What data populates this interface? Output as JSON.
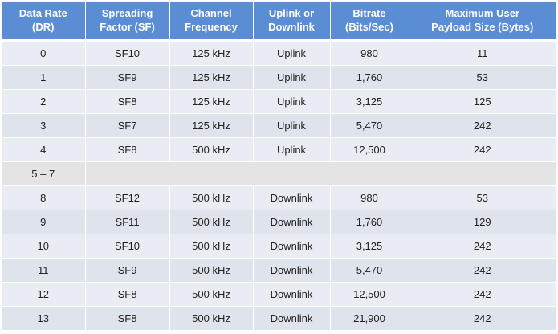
{
  "table": {
    "headers": [
      "Data Rate\n(DR)",
      "Spreading\nFactor (SF)",
      "Channel\nFrequency",
      "Uplink or\nDownlink",
      "Bitrate\n(Bits/Sec)",
      "Maximum User\nPayload Size (Bytes)"
    ],
    "rows": [
      [
        "0",
        "SF10",
        "125 kHz",
        "Uplink",
        "980",
        "11"
      ],
      [
        "1",
        "SF9",
        "125 kHz",
        "Uplink",
        "1,760",
        "53"
      ],
      [
        "2",
        "SF8",
        "125 kHz",
        "Uplink",
        "3,125",
        "125"
      ],
      [
        "3",
        "SF7",
        "125 kHz",
        "Uplink",
        "5,470",
        "242"
      ],
      [
        "4",
        "SF8",
        "500 kHz",
        "Uplink",
        "12,500",
        "242"
      ],
      [
        "5 – 7"
      ],
      [
        "8",
        "SF12",
        "500 kHz",
        "Downlink",
        "980",
        "53"
      ],
      [
        "9",
        "SF11",
        "500 kHz",
        "Downlink",
        "1,760",
        "129"
      ],
      [
        "10",
        "SF10",
        "500 kHz",
        "Downlink",
        "3,125",
        "242"
      ],
      [
        "11",
        "SF9",
        "500 kHz",
        "Downlink",
        "5,470",
        "242"
      ],
      [
        "12",
        "SF8",
        "500 kHz",
        "Downlink",
        "12,500",
        "242"
      ],
      [
        "13",
        "SF8",
        "500 kHz",
        "Downlink",
        "21,900",
        "242"
      ]
    ]
  },
  "colors": {
    "header_bg": "#5b8dd4",
    "header_text": "#ffffff",
    "row_light": "#e9ecf3",
    "row_dark": "#dfe3ec",
    "reserved_row": "#e4e4e4"
  }
}
